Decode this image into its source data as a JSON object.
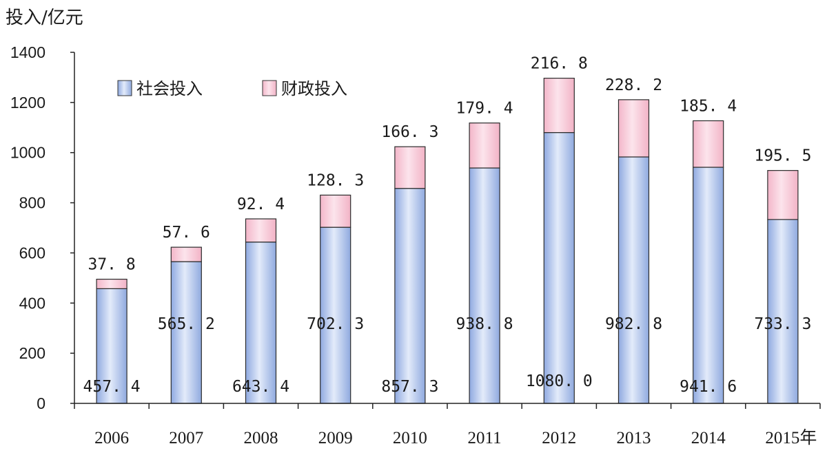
{
  "chart_data": {
    "type": "bar",
    "stacked": true,
    "ylabel": "投入/亿元",
    "xlabel_suffix": "年",
    "ylim": [
      0,
      1400
    ],
    "yticks": [
      0,
      200,
      400,
      600,
      800,
      1000,
      1200,
      1400
    ],
    "categories": [
      "2006",
      "2007",
      "2008",
      "2009",
      "2010",
      "2011",
      "2012",
      "2013",
      "2014",
      "2015"
    ],
    "series": [
      {
        "name": "社会投入",
        "color": "#9db5e6",
        "values": [
          457.4,
          565.2,
          643.4,
          702.3,
          857.3,
          938.8,
          1080.0,
          982.8,
          941.6,
          733.3
        ]
      },
      {
        "name": "财政投入",
        "color": "#f4bfd0",
        "values": [
          37.8,
          57.6,
          92.4,
          128.3,
          166.3,
          179.4,
          216.8,
          228.2,
          185.4,
          195.5
        ]
      }
    ],
    "value_labels": {
      "social": [
        "457. 4",
        "565. 2",
        "643. 4",
        "702. 3",
        "857. 3",
        "938. 8",
        "1080. 0",
        "982. 8",
        "941. 6",
        "733. 3"
      ],
      "fiscal": [
        "37. 8",
        "57. 6",
        "92. 4",
        "128. 3",
        "166. 3",
        "179. 4",
        "216. 8",
        "228. 2",
        "185. 4",
        "195. 5"
      ]
    },
    "legend_position": "top-left",
    "grid": false
  }
}
